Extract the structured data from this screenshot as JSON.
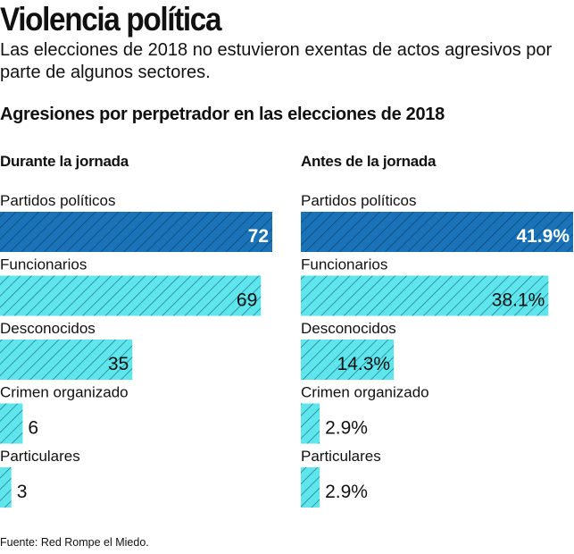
{
  "header": {
    "title": "Violencia política",
    "subtitle": "Las elecciones de 2018 no estuvieron exentas de actos agresivos por parte de algunos sectores."
  },
  "section_title": "Agresiones por perpetrador en las elecciones de 2018",
  "source": "Fuente: Red Rompe el Miedo.",
  "colors": {
    "highlight": "#1a73b8",
    "bar": "#5ee6ec",
    "hatch": "#1c6d80"
  },
  "chart_data": [
    {
      "type": "bar",
      "title": "Durante la jornada",
      "categories": [
        "Partidos políticos",
        "Funcionarios",
        "Desconocidos",
        "Crimen organizado",
        "Particulares"
      ],
      "values": [
        72,
        69,
        35,
        6,
        3
      ],
      "labels": [
        "72",
        "69",
        "35",
        "6",
        "3"
      ],
      "xlim": [
        0,
        72
      ],
      "highlight_index": 0
    },
    {
      "type": "bar",
      "title": "Antes de la jornada",
      "categories": [
        "Partidos políticos",
        "Funcionarios",
        "Desconocidos",
        "Crimen organizado",
        "Particulares"
      ],
      "values": [
        41.9,
        38.1,
        14.3,
        2.9,
        2.9
      ],
      "labels": [
        "41.9%",
        "38.1%",
        "14.3%",
        "2.9%",
        "2.9%"
      ],
      "xlim": [
        0,
        41.9
      ],
      "highlight_index": 0
    }
  ]
}
